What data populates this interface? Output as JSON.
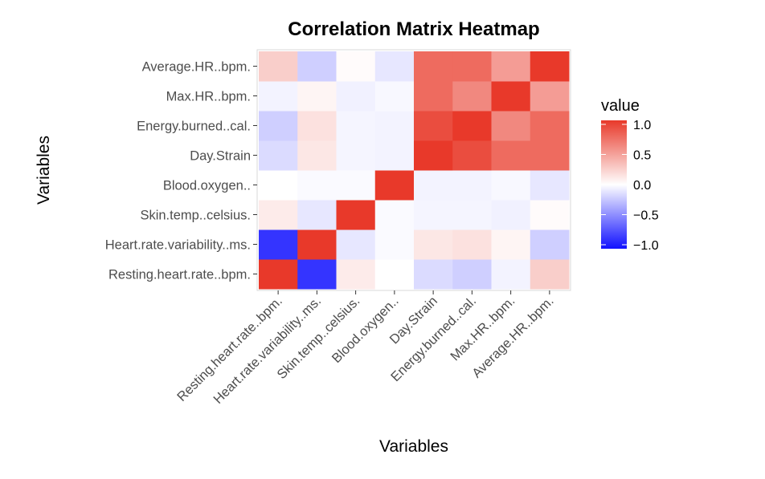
{
  "chart_data": {
    "type": "heatmap",
    "title": "Correlation Matrix Heatmap",
    "xlabel": "Variables",
    "ylabel": "Variables",
    "x_categories": [
      "Resting.heart.rate..bpm.",
      "Heart.rate.variability..ms.",
      "Skin.temp..celsius.",
      "Blood.oxygen..",
      "Day.Strain",
      "Energy.burned..cal.",
      "Max.HR..bpm.",
      "Average.HR..bpm."
    ],
    "y_categories": [
      "Resting.heart.rate..bpm.",
      "Heart.rate.variability..ms.",
      "Skin.temp..celsius.",
      "Blood.oxygen..",
      "Day.Strain",
      "Energy.burned..cal.",
      "Max.HR..bpm.",
      "Average.HR..bpm."
    ],
    "values": [
      [
        1.0,
        -0.85,
        0.1,
        0.0,
        -0.15,
        -0.2,
        -0.05,
        0.25
      ],
      [
        -0.85,
        1.0,
        -0.1,
        -0.02,
        0.12,
        0.15,
        0.05,
        -0.2
      ],
      [
        0.1,
        -0.1,
        1.0,
        -0.02,
        -0.04,
        -0.04,
        -0.06,
        0.02
      ],
      [
        0.0,
        -0.02,
        -0.02,
        1.0,
        -0.05,
        -0.05,
        -0.03,
        -0.1
      ],
      [
        -0.15,
        0.12,
        -0.04,
        -0.05,
        1.0,
        0.9,
        0.75,
        0.75
      ],
      [
        -0.2,
        0.15,
        -0.04,
        -0.05,
        0.9,
        1.0,
        0.6,
        0.75
      ],
      [
        -0.05,
        0.05,
        -0.06,
        -0.03,
        0.75,
        0.6,
        1.0,
        0.5
      ],
      [
        0.25,
        -0.2,
        0.02,
        -0.1,
        0.75,
        0.75,
        0.5,
        1.0
      ]
    ],
    "value_range": [
      -1.0,
      1.0
    ],
    "colors": {
      "low": "#1010ff",
      "mid": "#ffffff",
      "high": "#e8392a"
    },
    "grid": false,
    "legend": {
      "title": "value",
      "position": "right",
      "breaks": [
        "1.0",
        "0.5",
        "0.0",
        "−0.5",
        "−1.0"
      ],
      "break_values": [
        1.0,
        0.5,
        0.0,
        -0.5,
        -1.0
      ]
    }
  }
}
